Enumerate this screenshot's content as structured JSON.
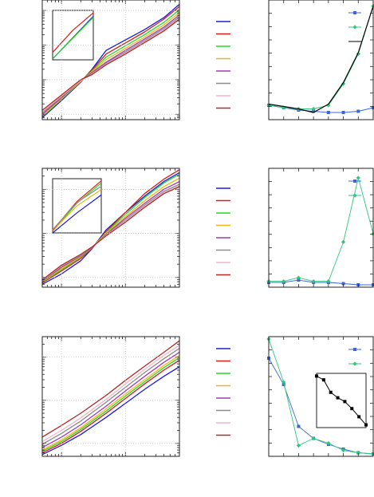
{
  "figure": {
    "line_colors": [
      "#1a1adc",
      "#dc1a1a",
      "#22dc22",
      "#f2b418",
      "#a03cb4",
      "#8c8c8c",
      "#f4b4c4",
      "#b42828"
    ],
    "frame_color": "#222222",
    "grid_color": "#bbbbbb"
  },
  "chart_data": [
    {
      "id": "row1-main",
      "type": "line",
      "xscale": "log",
      "yscale": "log",
      "xlim": [
        0.5,
        70
      ],
      "ylim": [
        0.7,
        2000
      ],
      "grid": true,
      "series": [
        {
          "color": "#1a1adc",
          "x": [
            0.5,
            1,
            2,
            3,
            5,
            10,
            20,
            40,
            70
          ],
          "y": [
            0.8,
            2.5,
            8.5,
            20,
            70,
            140,
            280,
            620,
            1500
          ]
        },
        {
          "color": "#dc1a1a",
          "x": [
            0.5,
            1,
            2,
            3,
            5,
            10,
            20,
            40,
            70
          ],
          "y": [
            0.9,
            2.8,
            9,
            19,
            55,
            115,
            240,
            560,
            1300
          ]
        },
        {
          "color": "#22dc22",
          "x": [
            0.5,
            1,
            2,
            3,
            5,
            10,
            20,
            40,
            70
          ],
          "y": [
            0.85,
            2.7,
            9,
            18,
            45,
            95,
            200,
            450,
            1050
          ]
        },
        {
          "color": "#f2b418",
          "x": [
            0.5,
            1,
            2,
            3,
            5,
            10,
            20,
            40,
            70
          ],
          "y": [
            0.9,
            2.8,
            9,
            17,
            38,
            80,
            170,
            380,
            870
          ]
        },
        {
          "color": "#a03cb4",
          "x": [
            0.5,
            1,
            2,
            3,
            5,
            10,
            20,
            40,
            70
          ],
          "y": [
            1.0,
            3.0,
            9.5,
            16,
            32,
            70,
            150,
            330,
            740
          ]
        },
        {
          "color": "#8c8c8c",
          "x": [
            0.5,
            1,
            2,
            3,
            5,
            10,
            20,
            40,
            70
          ],
          "y": [
            1.1,
            3.2,
            9.5,
            15,
            30,
            63,
            135,
            300,
            650
          ]
        },
        {
          "color": "#f4b4c4",
          "x": [
            0.5,
            1,
            2,
            3,
            5,
            10,
            20,
            40,
            70
          ],
          "y": [
            1.2,
            3.4,
            9.5,
            14.5,
            28,
            58,
            125,
            270,
            600
          ]
        },
        {
          "color": "#b42828",
          "x": [
            0.5,
            1,
            2,
            3,
            5,
            10,
            20,
            40,
            70
          ],
          "y": [
            1.3,
            3.6,
            10,
            14,
            27,
            55,
            118,
            255,
            560
          ]
        }
      ]
    },
    {
      "id": "row2-main",
      "type": "line",
      "xscale": "log",
      "yscale": "log",
      "xlim": [
        0.5,
        70
      ],
      "ylim": [
        0.6,
        300
      ],
      "grid": true,
      "series": [
        {
          "color": "#1a1adc",
          "x": [
            0.5,
            1,
            2,
            3,
            5,
            10,
            20,
            40,
            70
          ],
          "y": [
            0.7,
            1.2,
            2.4,
            4.5,
            12,
            30,
            70,
            150,
            240
          ]
        },
        {
          "color": "#dc1a1a",
          "x": [
            0.5,
            1,
            2,
            3,
            5,
            10,
            20,
            40,
            70
          ],
          "y": [
            0.75,
            1.4,
            2.7,
            4.6,
            11,
            30,
            80,
            170,
            280
          ]
        },
        {
          "color": "#22dc22",
          "x": [
            0.5,
            1,
            2,
            3,
            5,
            10,
            20,
            40,
            70
          ],
          "y": [
            0.78,
            1.5,
            2.9,
            4.7,
            10.5,
            27,
            65,
            140,
            220
          ]
        },
        {
          "color": "#f2b418",
          "x": [
            0.5,
            1,
            2,
            3,
            5,
            10,
            20,
            40,
            70
          ],
          "y": [
            0.8,
            1.6,
            3.0,
            4.8,
            10,
            24,
            55,
            115,
            180
          ]
        },
        {
          "color": "#a03cb4",
          "x": [
            0.5,
            1,
            2,
            3,
            5,
            10,
            20,
            40,
            70
          ],
          "y": [
            0.82,
            1.7,
            3.1,
            4.8,
            9.5,
            22,
            48,
            100,
            150
          ]
        },
        {
          "color": "#8c8c8c",
          "x": [
            0.5,
            1,
            2,
            3,
            5,
            10,
            20,
            40,
            70
          ],
          "y": [
            0.84,
            1.8,
            3.2,
            4.9,
            9.2,
            20,
            44,
            90,
            130
          ]
        },
        {
          "color": "#f4b4c4",
          "x": [
            0.5,
            1,
            2,
            3,
            5,
            10,
            20,
            40,
            70
          ],
          "y": [
            0.86,
            1.85,
            3.3,
            4.9,
            9.0,
            19,
            41,
            84,
            120
          ]
        },
        {
          "color": "#b42828",
          "x": [
            0.5,
            1,
            2,
            3,
            5,
            10,
            20,
            40,
            70
          ],
          "y": [
            0.88,
            1.9,
            3.35,
            4.9,
            8.8,
            18,
            39,
            80,
            115
          ]
        }
      ]
    },
    {
      "id": "row3-main",
      "type": "line",
      "xscale": "log",
      "yscale": "log",
      "xlim": [
        0.5,
        70
      ],
      "ylim": [
        0.5,
        300
      ],
      "grid": true,
      "series": [
        {
          "color": "#1a1adc",
          "x": [
            0.5,
            1,
            2,
            5,
            10,
            20,
            40,
            70
          ],
          "y": [
            0.55,
            0.9,
            1.6,
            4.0,
            8.5,
            18,
            36,
            60
          ]
        },
        {
          "color": "#dc1a1a",
          "x": [
            0.5,
            1,
            2,
            5,
            10,
            20,
            40,
            70
          ],
          "y": [
            0.6,
            1.0,
            1.9,
            5.0,
            11,
            24,
            50,
            85
          ]
        },
        {
          "color": "#22dc22",
          "x": [
            0.5,
            1,
            2,
            5,
            10,
            20,
            40,
            70
          ],
          "y": [
            0.65,
            1.1,
            2.1,
            5.6,
            12.5,
            27,
            57,
            98
          ]
        },
        {
          "color": "#f2b418",
          "x": [
            0.5,
            1,
            2,
            5,
            10,
            20,
            40,
            70
          ],
          "y": [
            0.7,
            1.2,
            2.3,
            6.3,
            14,
            30,
            64,
            110
          ]
        },
        {
          "color": "#a03cb4",
          "x": [
            0.5,
            1,
            2,
            5,
            10,
            20,
            40,
            70
          ],
          "y": [
            0.8,
            1.4,
            2.7,
            7.3,
            16.5,
            36,
            76,
            130
          ]
        },
        {
          "color": "#8c8c8c",
          "x": [
            0.5,
            1,
            2,
            5,
            10,
            20,
            40,
            70
          ],
          "y": [
            0.95,
            1.7,
            3.3,
            9.0,
            20,
            44,
            92,
            160
          ]
        },
        {
          "color": "#f4b4c4",
          "x": [
            0.5,
            1,
            2,
            5,
            10,
            20,
            40,
            70
          ],
          "y": [
            1.1,
            2.0,
            3.9,
            10.5,
            24,
            52,
            110,
            190
          ]
        },
        {
          "color": "#b42828",
          "x": [
            0.5,
            1,
            2,
            5,
            10,
            20,
            40,
            70
          ],
          "y": [
            1.4,
            2.6,
            5.0,
            13,
            29,
            62,
            130,
            240
          ]
        }
      ]
    },
    {
      "id": "row1-inset",
      "type": "line",
      "xlim": [
        0,
        1
      ],
      "ylim": [
        0,
        1
      ],
      "series": [
        {
          "color": "#1a1adc",
          "x": [
            0,
            1
          ],
          "y": [
            0.02,
            0.88
          ]
        },
        {
          "color": "#22dc22",
          "x": [
            0,
            1
          ],
          "y": [
            0.02,
            0.86
          ]
        },
        {
          "color": "#dc1a1a",
          "x": [
            0,
            0.5,
            1
          ],
          "y": [
            0.15,
            0.6,
            0.95
          ]
        }
      ]
    },
    {
      "id": "row2-inset",
      "type": "line",
      "xlim": [
        0,
        1
      ],
      "ylim": [
        0,
        1
      ],
      "series": [
        {
          "color": "#1a1adc",
          "x": [
            0,
            0.5,
            1
          ],
          "y": [
            0.0,
            0.37,
            0.7
          ]
        },
        {
          "color": "#22dc22",
          "x": [
            0,
            0.5,
            1
          ],
          "y": [
            0.03,
            0.55,
            0.92
          ]
        },
        {
          "color": "#f2b418",
          "x": [
            0,
            0.5,
            1
          ],
          "y": [
            0.04,
            0.5,
            0.8
          ]
        },
        {
          "color": "#dc1a1a",
          "x": [
            0,
            0.5,
            1
          ],
          "y": [
            0.05,
            0.58,
            0.96
          ]
        },
        {
          "color": "#8c8c8c",
          "x": [
            0,
            0.5,
            1
          ],
          "y": [
            0.06,
            0.56,
            0.86
          ]
        }
      ]
    },
    {
      "id": "row1-side",
      "type": "line",
      "xlim": [
        0,
        7
      ],
      "ylim": [
        0,
        1
      ],
      "series": [
        {
          "color": "#3c64dc",
          "marker": "square",
          "x": [
            0,
            1,
            2,
            3,
            4,
            5,
            6,
            7
          ],
          "y": [
            0.12,
            0.1,
            0.08,
            0.07,
            0.06,
            0.06,
            0.07,
            0.1
          ]
        },
        {
          "color": "#2ec87c",
          "marker": "diamond",
          "x": [
            0,
            1,
            2,
            3,
            4,
            5,
            6,
            7
          ],
          "y": [
            0.12,
            0.1,
            0.09,
            0.09,
            0.12,
            0.3,
            0.55,
            0.95
          ]
        },
        {
          "color": "#000000",
          "marker": "none",
          "x": [
            0,
            1,
            2,
            3,
            4,
            5,
            6,
            7
          ],
          "y": [
            0.13,
            0.11,
            0.09,
            0.06,
            0.13,
            0.31,
            0.56,
            0.95
          ]
        }
      ]
    },
    {
      "id": "row2-side",
      "type": "line",
      "xlim": [
        0,
        7
      ],
      "ylim": [
        0,
        1
      ],
      "series": [
        {
          "color": "#3c64dc",
          "marker": "square",
          "x": [
            0,
            1,
            2,
            3,
            4,
            5,
            6,
            7
          ],
          "y": [
            0.04,
            0.04,
            0.06,
            0.04,
            0.04,
            0.03,
            0.02,
            0.02
          ]
        },
        {
          "color": "#2ec87c",
          "marker": "diamond",
          "x": [
            0,
            1,
            2,
            3,
            4,
            5,
            6,
            7
          ],
          "y": [
            0.05,
            0.05,
            0.08,
            0.05,
            0.05,
            0.38,
            0.92,
            0.45
          ]
        }
      ]
    },
    {
      "id": "row3-side",
      "type": "line",
      "xlim": [
        0,
        7
      ],
      "ylim": [
        0,
        1
      ],
      "series": [
        {
          "color": "#3c64dc",
          "marker": "square",
          "x": [
            0,
            1,
            2,
            3,
            4,
            5,
            6,
            7
          ],
          "y": [
            0.82,
            0.6,
            0.25,
            0.15,
            0.1,
            0.06,
            0.03,
            0.02
          ]
        },
        {
          "color": "#2ec87c",
          "marker": "diamond",
          "x": [
            0,
            1,
            2,
            3,
            4,
            5,
            6,
            7
          ],
          "y": [
            0.98,
            0.62,
            0.09,
            0.15,
            0.11,
            0.05,
            0.03,
            0.02
          ]
        }
      ]
    },
    {
      "id": "row3-side-inset",
      "type": "line",
      "xlim": [
        0,
        7
      ],
      "ylim": [
        0,
        1
      ],
      "series": [
        {
          "color": "#000000",
          "marker": "square",
          "x": [
            0,
            1,
            2,
            3,
            4,
            5,
            6,
            7
          ],
          "y": [
            0.95,
            0.88,
            0.65,
            0.55,
            0.48,
            0.35,
            0.2,
            0.05
          ]
        }
      ]
    }
  ]
}
